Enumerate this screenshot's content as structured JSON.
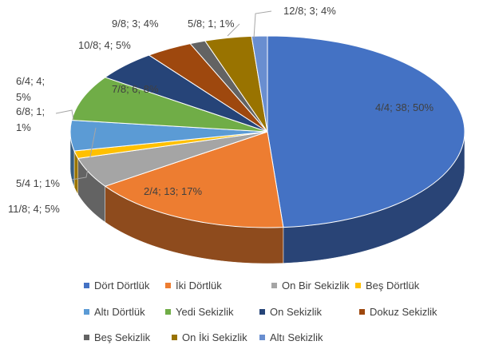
{
  "chart_data": {
    "type": "pie3d",
    "categories": [
      "Dört Dörtlük",
      "İki Dörtlük",
      "On Bir Sekizlik",
      "Beş Dörtlük",
      "Altı Dörtlük",
      "Yedi Sekizlik",
      "On Sekizlik",
      "Dokuz Sekizlik",
      "Beş Sekizlik",
      "On İki Sekizlik",
      "Altı Sekizlik"
    ],
    "values": [
      38,
      13,
      4,
      1,
      4,
      6,
      4,
      3,
      1,
      3,
      1
    ],
    "value_labels": [
      "4/4; 38; 50%",
      "2/4; 13; 17%",
      "11/8; 4; 5%",
      "5/4 1; 1%",
      "6/4; 4; 5%",
      "7/8; 6; 8%",
      "10/8; 4; 5%",
      "9/8; 3; 4%",
      "5/8; 1; 1%",
      "12/8; 3; 4%",
      "6/8; 1; 1%"
    ],
    "colors": [
      "#4472c4",
      "#ed7d31",
      "#a5a5a5",
      "#ffc000",
      "#5b9bd5",
      "#70ad47",
      "#264478",
      "#9e480e",
      "#636363",
      "#997300",
      "#698ed0"
    ],
    "legend": "bottom"
  }
}
